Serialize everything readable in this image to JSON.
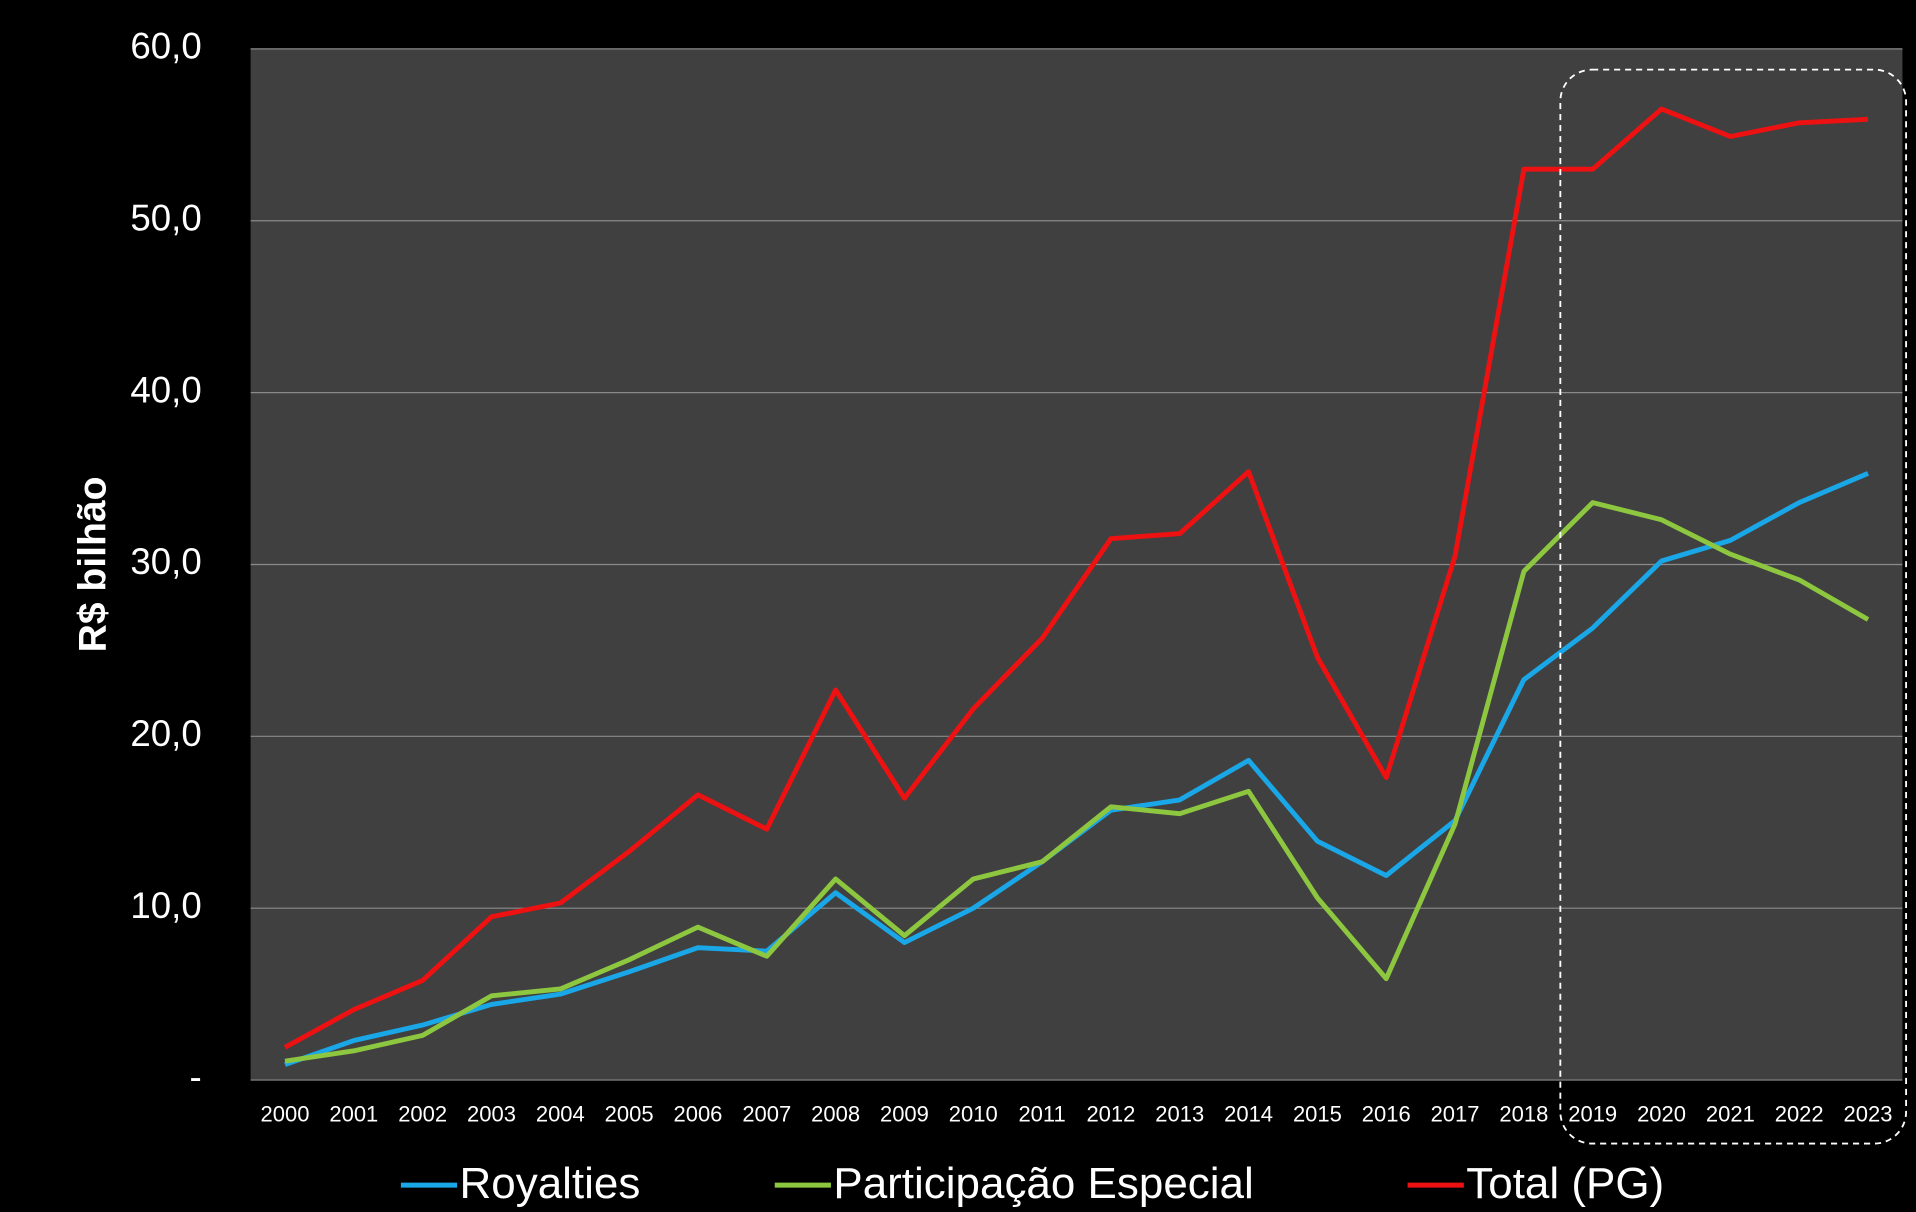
{
  "chart_data": {
    "type": "line",
    "y_label": "R$ bilhão",
    "categories": [
      "2000",
      "2001",
      "2002",
      "2003",
      "2004",
      "2005",
      "2006",
      "2007",
      "2008",
      "2009",
      "2010",
      "2011",
      "2012",
      "2013",
      "2014",
      "2015",
      "2016",
      "2017",
      "2018",
      "2019",
      "2020",
      "2021",
      "2022",
      "2023"
    ],
    "series": [
      {
        "name": "Royalties",
        "color": "#1aa7e8",
        "values": [
          0.9,
          2.3,
          3.2,
          4.4,
          5.0,
          6.3,
          7.7,
          7.5,
          10.9,
          8.0,
          10.0,
          12.7,
          15.7,
          16.3,
          18.6,
          13.9,
          11.9,
          15.1,
          23.3,
          26.3,
          30.2,
          31.4,
          33.6,
          35.3
        ]
      },
      {
        "name": "Participação Especial",
        "color": "#8dc63f",
        "values": [
          1.1,
          1.7,
          2.6,
          4.9,
          5.3,
          7.0,
          8.9,
          7.2,
          11.7,
          8.4,
          11.7,
          12.7,
          15.9,
          15.5,
          16.8,
          10.6,
          5.9,
          14.9,
          29.6,
          33.6,
          32.6,
          30.6,
          29.1,
          26.8
        ]
      },
      {
        "name": "Total (PG)",
        "color": "#ee1111",
        "values": [
          1.9,
          4.1,
          5.8,
          9.5,
          10.3,
          13.3,
          16.6,
          14.6,
          22.7,
          16.4,
          21.6,
          25.7,
          31.5,
          31.8,
          35.4,
          24.6,
          17.6,
          30.5,
          53.0,
          53.0,
          56.5,
          54.9,
          55.7,
          55.9
        ]
      }
    ],
    "ylim": [
      0,
      60
    ],
    "yticks": [
      {
        "value": 0,
        "label": "-"
      },
      {
        "value": 10,
        "label": "10,0"
      },
      {
        "value": 20,
        "label": "20,0"
      },
      {
        "value": 30,
        "label": "30,0"
      },
      {
        "value": 40,
        "label": "40,0"
      },
      {
        "value": 50,
        "label": "50,0"
      },
      {
        "value": 60,
        "label": "60,0"
      }
    ],
    "grid": true
  }
}
